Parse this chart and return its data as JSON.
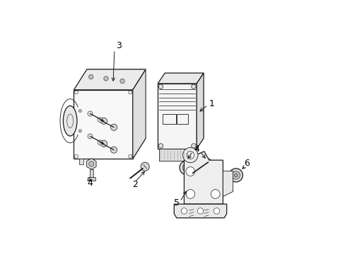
{
  "bg_color": "#ffffff",
  "line_color": "#1a1a1a",
  "label_color": "#000000",
  "figsize": [
    4.89,
    3.6
  ],
  "dpi": 100,
  "modulator_box": {
    "fx": 0.1,
    "fy": 0.38,
    "fw": 0.25,
    "fh": 0.3,
    "ox": 0.055,
    "oy": 0.085
  },
  "ecu_box": {
    "fx": 0.44,
    "fy": 0.4,
    "fw": 0.16,
    "fh": 0.28,
    "ox": 0.025,
    "oy": 0.04
  }
}
